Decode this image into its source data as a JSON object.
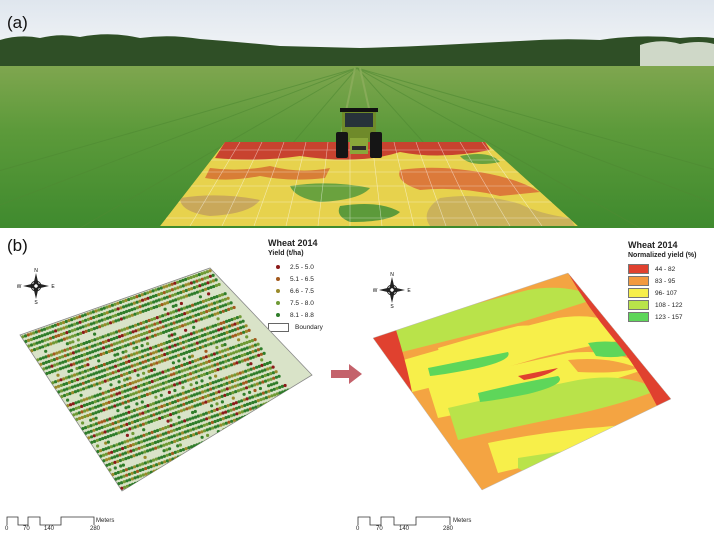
{
  "panel_a": {
    "label": "(a)"
  },
  "panel_b": {
    "label": "(b)",
    "left_legend": {
      "title": "Wheat 2014",
      "subtitle": "Yield (t/ha)",
      "items": [
        {
          "label": "2.5 - 5.0",
          "color": "#8b1a1a"
        },
        {
          "label": "5.1 - 6.5",
          "color": "#a35a1e"
        },
        {
          "label": "6.6 - 7.5",
          "color": "#9a8a2a"
        },
        {
          "label": "7.5 - 8.0",
          "color": "#6f9a35"
        },
        {
          "label": "8.1 - 8.8",
          "color": "#2f7d2a"
        }
      ],
      "boundary_label": "Boundary"
    },
    "right_legend": {
      "title": "Wheat 2014",
      "subtitle": "Normalized yield (%)",
      "items": [
        {
          "label": "44 - 82",
          "color": "#e0412f"
        },
        {
          "label": "83 - 95",
          "color": "#f29a3f"
        },
        {
          "label": "96- 107",
          "color": "#f7ef4a"
        },
        {
          "label": "108 - 122",
          "color": "#b9e34a"
        },
        {
          "label": "123 - 157",
          "color": "#5ed65a"
        }
      ]
    },
    "compass": {
      "n": "N",
      "s": "S",
      "e": "E",
      "w": "W",
      "icon": "compass-rose-icon"
    },
    "scale_bar": {
      "ticks": [
        "0",
        "70",
        "140",
        "280"
      ],
      "unit": "Meters"
    },
    "arrow_color": "#c4626b"
  }
}
